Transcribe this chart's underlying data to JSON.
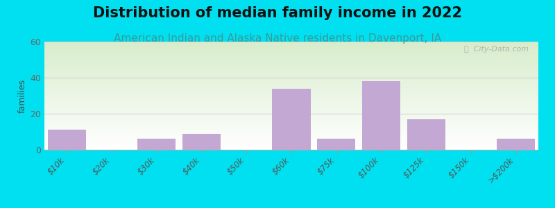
{
  "title": "Distribution of median family income in 2022",
  "subtitle": "American Indian and Alaska Native residents in Davenport, IA",
  "categories": [
    "$10k",
    "$20k",
    "$30k",
    "$40k",
    "$50k",
    "$60k",
    "$75k",
    "$100k",
    "$125k",
    "$150k",
    ">$200k"
  ],
  "values": [
    11,
    0,
    6,
    9,
    0,
    34,
    6,
    38,
    17,
    0,
    6
  ],
  "bar_color": "#c4a8d4",
  "ylabel": "families",
  "ylim": [
    0,
    60
  ],
  "yticks": [
    0,
    20,
    40,
    60
  ],
  "background_outer": "#00e0f0",
  "background_inner_top": "#d8edcc",
  "background_inner_bottom": "#ffffff",
  "title_fontsize": 15,
  "subtitle_fontsize": 11,
  "subtitle_color": "#3a9999",
  "watermark": "ⓘ  City-Data.com"
}
